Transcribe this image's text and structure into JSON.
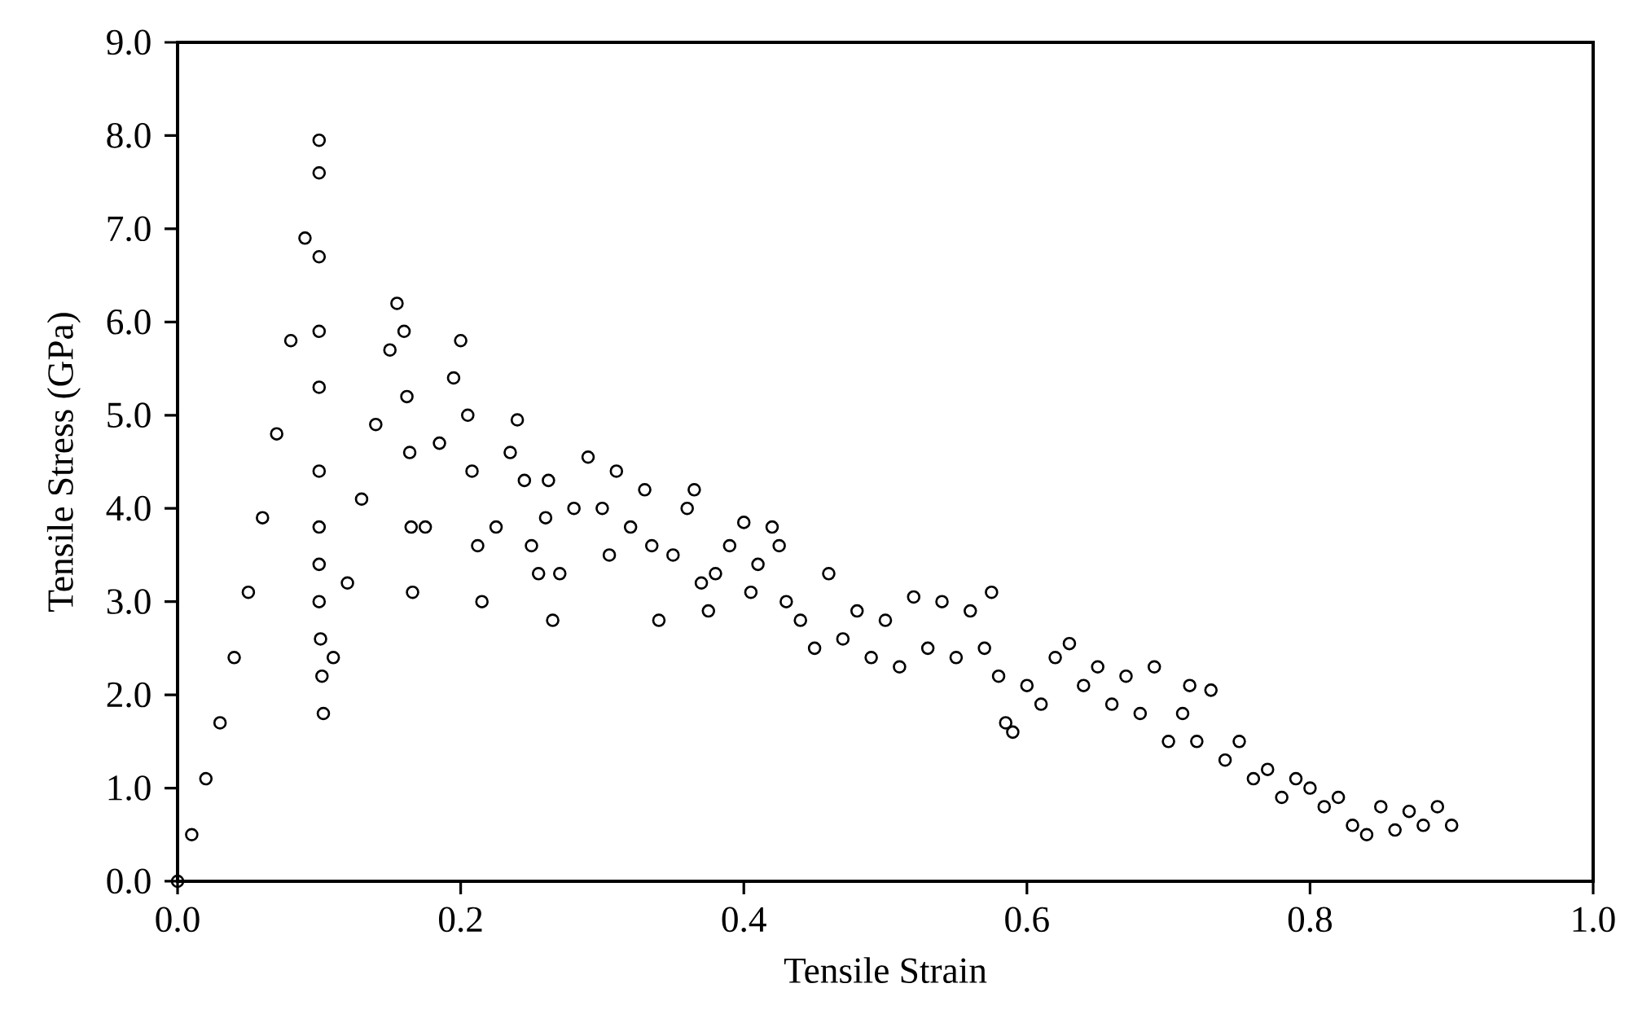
{
  "chart_data": {
    "type": "scatter",
    "xlabel": "Tensile Strain",
    "ylabel": "Tensile Stress (GPa)",
    "xlim": [
      0,
      1
    ],
    "ylim": [
      0,
      9
    ],
    "xticks": [
      {
        "value": 0,
        "label": "0.0"
      },
      {
        "value": 0.2,
        "label": "0.2"
      },
      {
        "value": 0.4,
        "label": "0.4"
      },
      {
        "value": 0.6,
        "label": "0.6"
      },
      {
        "value": 0.8,
        "label": "0.8"
      },
      {
        "value": 1,
        "label": "1.0"
      }
    ],
    "yticks": [
      {
        "value": 0,
        "label": "0.0"
      },
      {
        "value": 1,
        "label": "1.0"
      },
      {
        "value": 2,
        "label": "2.0"
      },
      {
        "value": 3,
        "label": "3.0"
      },
      {
        "value": 4,
        "label": "4.0"
      },
      {
        "value": 5,
        "label": "5.0"
      },
      {
        "value": 6,
        "label": "6.0"
      },
      {
        "value": 7,
        "label": "7.0"
      },
      {
        "value": 8,
        "label": "8.0"
      },
      {
        "value": 9,
        "label": "9.0"
      }
    ],
    "marker": "circle",
    "series": [
      {
        "color": "#000000",
        "x": [
          0,
          0.01,
          0.02,
          0.03,
          0.04,
          0.05,
          0.06,
          0.07,
          0.08,
          0.09,
          0.1,
          0.1,
          0.1,
          0.1,
          0.1,
          0.1,
          0.1,
          0.1,
          0.1,
          0.101,
          0.102,
          0.103,
          0.11,
          0.12,
          0.13,
          0.14,
          0.15,
          0.155,
          0.16,
          0.162,
          0.164,
          0.165,
          0.166,
          0.175,
          0.185,
          0.195,
          0.2,
          0.205,
          0.208,
          0.212,
          0.215,
          0.225,
          0.235,
          0.24,
          0.245,
          0.25,
          0.255,
          0.26,
          0.262,
          0.265,
          0.27,
          0.28,
          0.29,
          0.3,
          0.305,
          0.31,
          0.32,
          0.33,
          0.335,
          0.34,
          0.35,
          0.36,
          0.365,
          0.37,
          0.375,
          0.38,
          0.39,
          0.4,
          0.405,
          0.41,
          0.42,
          0.425,
          0.43,
          0.44,
          0.45,
          0.46,
          0.47,
          0.48,
          0.49,
          0.5,
          0.51,
          0.52,
          0.53,
          0.54,
          0.55,
          0.56,
          0.57,
          0.575,
          0.58,
          0.585,
          0.59,
          0.6,
          0.61,
          0.62,
          0.63,
          0.64,
          0.65,
          0.66,
          0.67,
          0.68,
          0.69,
          0.7,
          0.71,
          0.715,
          0.72,
          0.73,
          0.74,
          0.75,
          0.76,
          0.77,
          0.78,
          0.79,
          0.8,
          0.81,
          0.82,
          0.83,
          0.84,
          0.85,
          0.86,
          0.87,
          0.88,
          0.89,
          0.9
        ],
        "values": [
          0,
          0.5,
          1.1,
          1.7,
          2.4,
          3.1,
          3.9,
          4.8,
          5.8,
          6.9,
          7.95,
          7.6,
          6.7,
          5.9,
          5.3,
          4.4,
          3.8,
          3.4,
          3.0,
          2.6,
          2.2,
          1.8,
          2.4,
          3.2,
          4.1,
          4.9,
          5.7,
          6.2,
          5.9,
          5.2,
          4.6,
          3.8,
          3.1,
          3.8,
          4.7,
          5.4,
          5.8,
          5.0,
          4.4,
          3.6,
          3.0,
          3.8,
          4.6,
          4.95,
          4.3,
          3.6,
          3.3,
          3.9,
          4.3,
          2.8,
          3.3,
          4.0,
          4.55,
          4.0,
          3.5,
          4.4,
          3.8,
          4.2,
          3.6,
          2.8,
          3.5,
          4.0,
          4.2,
          3.2,
          2.9,
          3.3,
          3.6,
          3.85,
          3.1,
          3.4,
          3.8,
          3.6,
          3.0,
          2.8,
          2.5,
          3.3,
          2.6,
          2.9,
          2.4,
          2.8,
          2.3,
          3.05,
          2.5,
          3.0,
          2.4,
          2.9,
          2.5,
          3.1,
          2.2,
          1.7,
          1.6,
          2.1,
          1.9,
          2.4,
          2.55,
          2.1,
          2.3,
          1.9,
          2.2,
          1.8,
          2.3,
          1.5,
          1.8,
          2.1,
          1.5,
          2.05,
          1.3,
          1.5,
          1.1,
          1.2,
          0.9,
          1.1,
          1.0,
          0.8,
          0.9,
          0.6,
          0.5,
          0.8,
          0.55,
          0.75,
          0.6,
          0.8,
          0.6
        ]
      }
    ]
  }
}
